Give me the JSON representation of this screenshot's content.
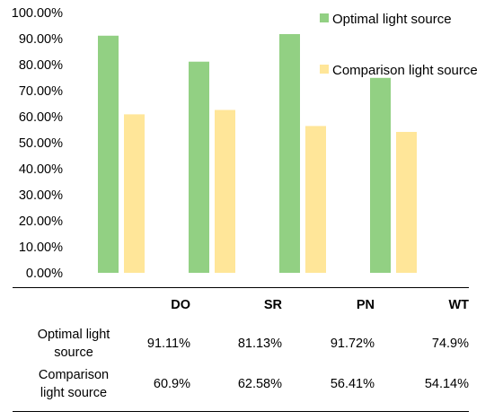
{
  "chart_data": {
    "type": "bar",
    "categories": [
      "DO",
      "SR",
      "PN",
      "WT"
    ],
    "series": [
      {
        "name": "Optimal light source",
        "values": [
          91.11,
          81.13,
          91.72,
          74.9
        ],
        "color": "#92d083"
      },
      {
        "name": "Comparison light source",
        "values": [
          60.9,
          62.58,
          56.41,
          54.14
        ],
        "color": "#ffe699"
      }
    ],
    "ylim": [
      0,
      100
    ],
    "yticks": [
      "0.00%",
      "10.00%",
      "20.00%",
      "30.00%",
      "40.00%",
      "50.00%",
      "60.00%",
      "70.00%",
      "80.00%",
      "90.00%",
      "100.00%"
    ],
    "grid": false,
    "legend_position": "top-right"
  },
  "table": {
    "headers": [
      "DO",
      "SR",
      "PN",
      "WT"
    ],
    "rows": [
      {
        "label_line1": "Optimal light",
        "label_line2": "source",
        "values": [
          "91.11%",
          "81.13%",
          "91.72%",
          "74.9%"
        ]
      },
      {
        "label_line1": "Comparison",
        "label_line2": "light source",
        "values": [
          "60.9%",
          "62.58%",
          "56.41%",
          "54.14%"
        ]
      }
    ]
  }
}
